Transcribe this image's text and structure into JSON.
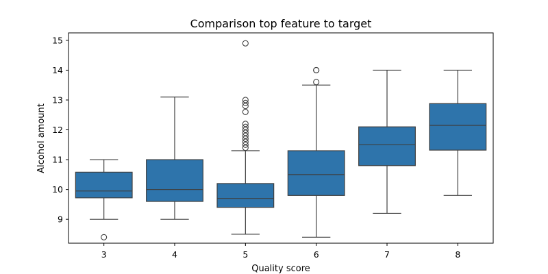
{
  "chart_data": {
    "type": "box",
    "title": "Comparison top feature to target",
    "xlabel": "Quality score",
    "ylabel": "Alcohol amount",
    "categories": [
      "3",
      "4",
      "5",
      "6",
      "7",
      "8"
    ],
    "yticks": [
      9,
      10,
      11,
      12,
      13,
      14,
      15
    ],
    "ylim": [
      8.2,
      15.25
    ],
    "grid": false,
    "color": "#2e74ab",
    "boxes": [
      {
        "category": "3",
        "whisker_low": 9.0,
        "q1": 9.72,
        "median": 9.95,
        "q3": 10.58,
        "whisker_high": 11.0,
        "outliers": [
          8.4
        ]
      },
      {
        "category": "4",
        "whisker_low": 9.0,
        "q1": 9.6,
        "median": 10.0,
        "q3": 11.0,
        "whisker_high": 13.1,
        "outliers": []
      },
      {
        "category": "5",
        "whisker_low": 8.5,
        "q1": 9.4,
        "median": 9.7,
        "q3": 10.2,
        "whisker_high": 11.3,
        "outliers": [
          11.4,
          11.5,
          11.6,
          11.7,
          11.8,
          11.9,
          12.0,
          12.1,
          12.2,
          12.6,
          12.8,
          12.9,
          13.0,
          14.9
        ]
      },
      {
        "category": "6",
        "whisker_low": 8.4,
        "q1": 9.8,
        "median": 10.5,
        "q3": 11.3,
        "whisker_high": 13.5,
        "outliers": [
          13.6,
          14.0,
          14.0
        ]
      },
      {
        "category": "7",
        "whisker_low": 9.2,
        "q1": 10.8,
        "median": 11.5,
        "q3": 12.1,
        "whisker_high": 14.0,
        "outliers": []
      },
      {
        "category": "8",
        "whisker_low": 9.8,
        "q1": 11.32,
        "median": 12.15,
        "q3": 12.88,
        "whisker_high": 14.0,
        "outliers": []
      }
    ]
  }
}
